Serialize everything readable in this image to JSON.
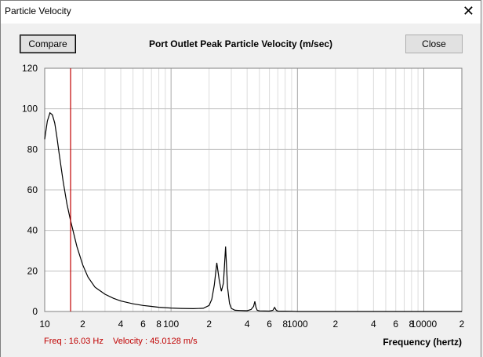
{
  "window": {
    "title": "Particle Velocity",
    "close_glyph": "✕"
  },
  "toolbar": {
    "compare_label": "Compare",
    "close_label": "Close"
  },
  "chart_data": {
    "type": "line",
    "title": "Port Outlet Peak Particle Velocity (m/sec)",
    "xlabel": "Frequency (hertz)",
    "ylabel": "",
    "x_scale": "log",
    "xlim": [
      10,
      20000
    ],
    "ylim": [
      0,
      120
    ],
    "grid": true,
    "y_ticks": [
      0,
      20,
      40,
      60,
      80,
      100,
      120
    ],
    "x_ticks": [
      {
        "v": 10,
        "label": "10"
      },
      {
        "v": 20,
        "label": "2"
      },
      {
        "v": 40,
        "label": "4"
      },
      {
        "v": 60,
        "label": "6"
      },
      {
        "v": 80,
        "label": "8"
      },
      {
        "v": 100,
        "label": "100"
      },
      {
        "v": 200,
        "label": "2"
      },
      {
        "v": 400,
        "label": "4"
      },
      {
        "v": 600,
        "label": "6"
      },
      {
        "v": 800,
        "label": "8"
      },
      {
        "v": 1000,
        "label": "1000"
      },
      {
        "v": 2000,
        "label": "2"
      },
      {
        "v": 4000,
        "label": "4"
      },
      {
        "v": 6000,
        "label": "6"
      },
      {
        "v": 8000,
        "label": "8"
      },
      {
        "v": 10000,
        "label": "10000"
      },
      {
        "v": 20000,
        "label": "2"
      }
    ],
    "cursor": {
      "freq": 16.03,
      "velocity": 45.0128
    },
    "series": [
      {
        "color": "#000000",
        "x": [
          10,
          10.5,
          11,
          11.5,
          12,
          12.5,
          13,
          14,
          15,
          16,
          18,
          20,
          22,
          25,
          30,
          35,
          40,
          50,
          60,
          70,
          80,
          100,
          120,
          150,
          180,
          200,
          210,
          220,
          230,
          240,
          250,
          260,
          270,
          280,
          290,
          300,
          320,
          350,
          400,
          430,
          450,
          460,
          470,
          480,
          500,
          600,
          640,
          660,
          680,
          700,
          900,
          1000,
          20000
        ],
        "y": [
          85,
          94,
          98,
          97,
          93,
          86,
          78,
          64,
          53,
          45,
          32,
          23,
          17,
          12,
          8.5,
          6.5,
          5.2,
          3.8,
          3,
          2.5,
          2.1,
          1.7,
          1.5,
          1.4,
          1.6,
          3,
          6,
          13,
          24,
          16,
          10,
          14,
          32,
          12,
          4,
          1.5,
          0.6,
          0.5,
          0.4,
          1,
          2.5,
          5,
          2,
          0.6,
          0.3,
          0.2,
          0.6,
          2,
          0.6,
          0.2,
          0.1,
          0,
          0
        ]
      }
    ]
  },
  "status": {
    "freq_text": "Freq : 16.03 Hz",
    "velocity_text": "Velocity : 45.0128 m/s"
  },
  "colors": {
    "cursor": "#c00000",
    "grid": "#c8c8c8",
    "status": "#c00000"
  }
}
